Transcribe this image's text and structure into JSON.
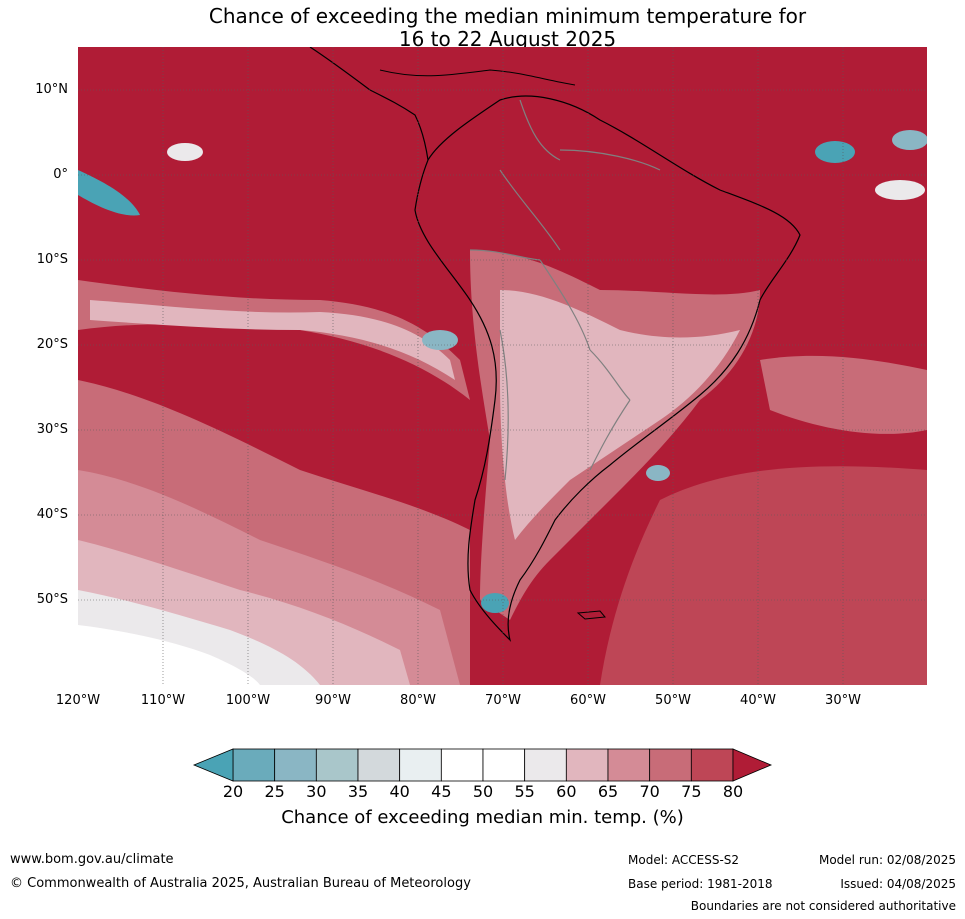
{
  "title": {
    "line1": "Chance of exceeding the median minimum temperature for",
    "line2": "16 to 22 August 2025"
  },
  "map": {
    "lat_labels": [
      "10°N",
      "0°",
      "10°S",
      "20°S",
      "30°S",
      "40°S",
      "50°S"
    ],
    "lon_labels": [
      "120°W",
      "110°W",
      "100°W",
      "90°W",
      "80°W",
      "70°W",
      "60°W",
      "50°W",
      "40°W",
      "30°W"
    ],
    "colors": {
      "ocean_dominant": "#b01c36",
      "land_outline": "#000000",
      "country_border": "#808080",
      "grid": "#5a5a5a"
    }
  },
  "colorbar": {
    "ticks": [
      "20",
      "25",
      "30",
      "35",
      "40",
      "45",
      "50",
      "55",
      "60",
      "65",
      "70",
      "75",
      "80"
    ],
    "colors": [
      "#4aa3b5",
      "#6aabbb",
      "#8ab6c4",
      "#a9c6ca",
      "#d3d9dc",
      "#e9eff1",
      "#ffffff",
      "#ffffff",
      "#ebe9eb",
      "#e1b6be",
      "#d48b96",
      "#c86c78",
      "#be4656",
      "#b01c36"
    ],
    "label": "Chance of exceeding median min. temp. (%)"
  },
  "footer": {
    "url": "www.bom.gov.au/climate",
    "copyright": "© Commonwealth of Australia 2025, Australian Bureau of Meteorology",
    "model": "Model: ACCESS-S2",
    "base_period": "Base period: 1981-2018",
    "model_run": "Model run: 02/08/2025",
    "issued": "Issued: 04/08/2025",
    "disclaimer": "Boundaries are not considered authoritative"
  }
}
